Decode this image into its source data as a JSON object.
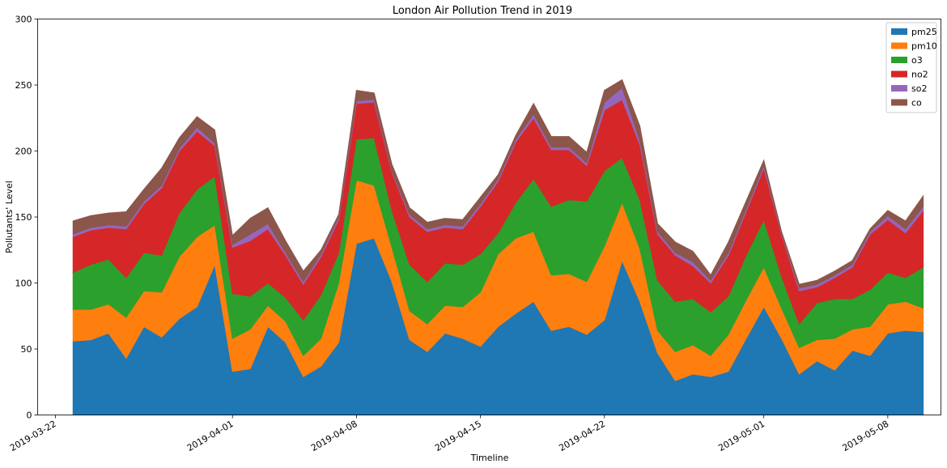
{
  "chart_data": {
    "type": "area",
    "stacked": true,
    "title": "London Air Pollution Trend in 2019",
    "xlabel": "Timeline",
    "ylabel": "Pollutants' Level",
    "ylim": [
      0,
      300
    ],
    "yticks": [
      0,
      50,
      100,
      150,
      200,
      250,
      300
    ],
    "xlim": [
      "2019-03-21",
      "2019-05-11"
    ],
    "xticks": [
      "2019-03-22",
      "2019-04-01",
      "2019-04-08",
      "2019-04-15",
      "2019-04-22",
      "2019-05-01",
      "2019-05-08"
    ],
    "x": [
      "2019-03-23",
      "2019-03-24",
      "2019-03-25",
      "2019-03-26",
      "2019-03-27",
      "2019-03-28",
      "2019-03-29",
      "2019-03-30",
      "2019-03-31",
      "2019-04-01",
      "2019-04-02",
      "2019-04-03",
      "2019-04-04",
      "2019-04-05",
      "2019-04-06",
      "2019-04-07",
      "2019-04-08",
      "2019-04-09",
      "2019-04-10",
      "2019-04-11",
      "2019-04-12",
      "2019-04-13",
      "2019-04-14",
      "2019-04-15",
      "2019-04-16",
      "2019-04-17",
      "2019-04-18",
      "2019-04-19",
      "2019-04-20",
      "2019-04-21",
      "2019-04-22",
      "2019-04-23",
      "2019-04-24",
      "2019-04-25",
      "2019-04-26",
      "2019-04-27",
      "2019-04-28",
      "2019-04-29",
      "2019-04-30",
      "2019-05-01",
      "2019-05-02",
      "2019-05-03",
      "2019-05-04",
      "2019-05-05",
      "2019-05-06",
      "2019-05-07",
      "2019-05-08",
      "2019-05-09",
      "2019-05-10"
    ],
    "series": [
      {
        "name": "pm25",
        "color": "#1f77b4",
        "values": [
          56,
          57,
          62,
          43,
          67,
          59,
          73,
          82,
          114,
          33,
          35,
          67,
          55,
          29,
          37,
          55,
          130,
          134,
          101,
          57,
          48,
          62,
          58,
          52,
          67,
          77,
          86,
          64,
          67,
          61,
          72,
          117,
          86,
          47,
          26,
          31,
          29,
          33,
          58,
          82,
          58,
          31,
          41,
          34,
          49,
          45,
          62,
          64,
          63
        ]
      },
      {
        "name": "pm10",
        "color": "#ff7f0e",
        "values": [
          24,
          23,
          22,
          31,
          27,
          34,
          47,
          53,
          30,
          25,
          30,
          16,
          16,
          16,
          21,
          45,
          48,
          40,
          26,
          22,
          21,
          21,
          24,
          41,
          55,
          57,
          53,
          42,
          40,
          40,
          56,
          44,
          40,
          17,
          22,
          22,
          16,
          28,
          29,
          30,
          23,
          20,
          16,
          24,
          16,
          22,
          22,
          22,
          18
        ]
      },
      {
        "name": "o3",
        "color": "#2ca02c",
        "values": [
          28,
          34,
          34,
          30,
          29,
          28,
          33,
          36,
          37,
          34,
          25,
          17,
          18,
          27,
          33,
          23,
          31,
          36,
          28,
          35,
          32,
          32,
          32,
          29,
          16,
          27,
          40,
          52,
          56,
          61,
          57,
          34,
          37,
          38,
          38,
          35,
          33,
          29,
          34,
          36,
          24,
          18,
          28,
          30,
          23,
          28,
          24,
          18,
          31
        ]
      },
      {
        "name": "no2",
        "color": "#d62728",
        "values": [
          27,
          26,
          24,
          37,
          37,
          51,
          47,
          44,
          23,
          35,
          42,
          41,
          32,
          27,
          29,
          25,
          27,
          27,
          29,
          36,
          38,
          27,
          27,
          36,
          39,
          46,
          46,
          43,
          38,
          27,
          46,
          44,
          42,
          35,
          35,
          25,
          22,
          31,
          33,
          39,
          32,
          25,
          12,
          16,
          24,
          42,
          40,
          34,
          43
        ]
      },
      {
        "name": "so2",
        "color": "#9467bd",
        "values": [
          2,
          2,
          2,
          2,
          2,
          2,
          2,
          3,
          2,
          2,
          5,
          4,
          2,
          2,
          2,
          2,
          2,
          2,
          1,
          2,
          2,
          2,
          2,
          2,
          2,
          2,
          3,
          2,
          2,
          2,
          6,
          9,
          3,
          2,
          2,
          3,
          2,
          2,
          2,
          2,
          1,
          2,
          2,
          2,
          2,
          2,
          3,
          3,
          3
        ]
      },
      {
        "name": "co",
        "color": "#8c564b",
        "values": [
          10,
          9,
          9,
          11,
          9,
          13,
          8,
          8,
          10,
          7,
          12,
          12,
          9,
          8,
          3,
          2,
          8,
          5,
          5,
          5,
          5,
          5,
          5,
          5,
          3,
          3,
          8,
          8,
          8,
          8,
          9,
          6,
          11,
          6,
          8,
          8,
          4,
          8,
          6,
          4,
          1,
          3,
          3,
          3,
          3,
          2,
          4,
          6,
          8
        ]
      }
    ],
    "legend_position": "top-right",
    "grid": false
  }
}
